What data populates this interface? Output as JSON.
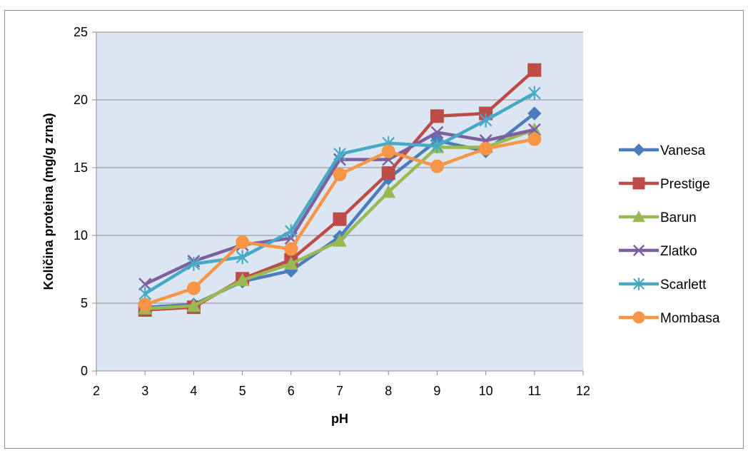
{
  "chart_data": {
    "type": "line",
    "title": "",
    "xlabel": "pH",
    "ylabel": "Količina proteina (mg/g zrna)",
    "xlim": [
      2,
      12
    ],
    "ylim": [
      0,
      25
    ],
    "x_ticks": [
      "2",
      "3",
      "4",
      "5",
      "6",
      "7",
      "8",
      "9",
      "10",
      "11",
      "12"
    ],
    "y_ticks": [
      "0",
      "5",
      "10",
      "15",
      "20",
      "25"
    ],
    "grid": "horizontal",
    "legend_position": "right",
    "x": [
      3,
      4,
      5,
      6,
      7,
      8,
      9,
      10,
      11
    ],
    "series": [
      {
        "name": "Vanesa",
        "color": "#4a7ebb",
        "marker": "diamond",
        "values": [
          4.7,
          4.9,
          6.6,
          7.4,
          9.9,
          14.2,
          17.0,
          16.2,
          19.0
        ]
      },
      {
        "name": "Prestige",
        "color": "#be4b48",
        "marker": "square",
        "values": [
          4.5,
          4.7,
          6.8,
          8.2,
          11.2,
          14.6,
          18.8,
          19.0,
          22.2
        ]
      },
      {
        "name": "Barun",
        "color": "#98b954",
        "marker": "triangle",
        "values": [
          4.6,
          4.8,
          6.7,
          7.9,
          9.6,
          13.2,
          16.5,
          16.5,
          17.8
        ]
      },
      {
        "name": "Zlatko",
        "color": "#7d60a0",
        "marker": "x",
        "values": [
          6.4,
          8.1,
          9.3,
          9.8,
          15.6,
          15.6,
          17.6,
          17.0,
          17.8
        ]
      },
      {
        "name": "Scarlett",
        "color": "#46aac5",
        "marker": "star",
        "values": [
          5.7,
          7.9,
          8.4,
          10.3,
          16.0,
          16.8,
          16.6,
          18.5,
          20.5
        ]
      },
      {
        "name": "Mombasa",
        "color": "#f79646",
        "marker": "circle",
        "values": [
          4.9,
          6.1,
          9.5,
          9.0,
          14.5,
          16.2,
          15.1,
          16.4,
          17.1
        ]
      }
    ]
  }
}
